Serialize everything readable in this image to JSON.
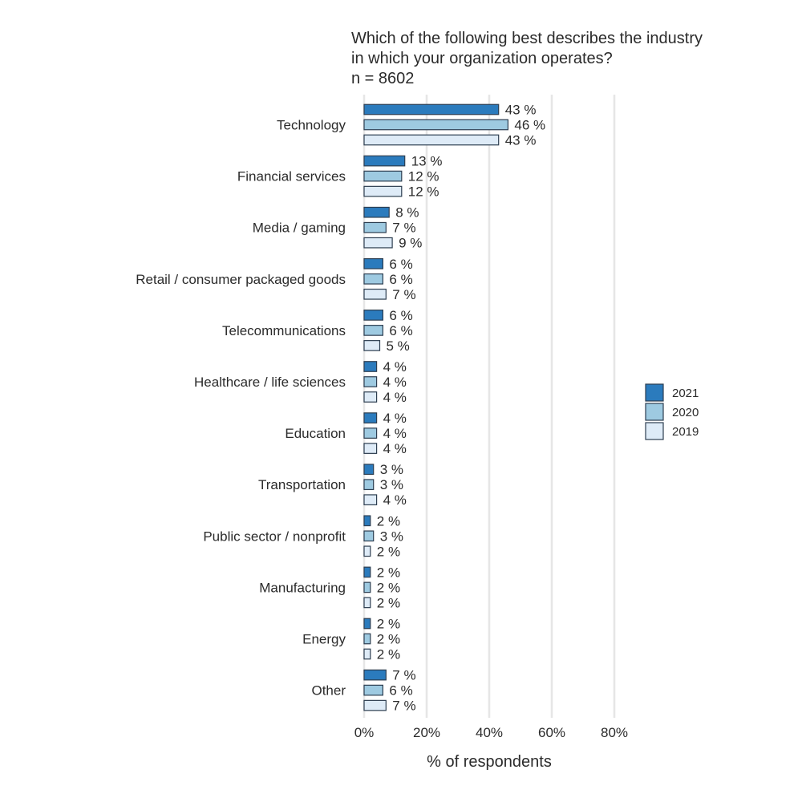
{
  "title": {
    "line1": "Which of the following best describes the industry",
    "line2": "in which your organization operates?",
    "line3": "n = 8602"
  },
  "chart_data": {
    "type": "bar",
    "orientation": "horizontal",
    "categories": [
      "Technology",
      "Financial services",
      "Media / gaming",
      "Retail / consumer packaged goods",
      "Telecommunications",
      "Healthcare / life sciences",
      "Education",
      "Transportation",
      "Public sector / nonprofit",
      "Manufacturing",
      "Energy",
      "Other"
    ],
    "series": [
      {
        "name": "2021",
        "color": "#2b7bbd",
        "values": [
          43,
          13,
          8,
          6,
          6,
          4,
          4,
          3,
          2,
          2,
          2,
          7
        ]
      },
      {
        "name": "2020",
        "color": "#9ecae1",
        "values": [
          46,
          12,
          7,
          6,
          6,
          4,
          4,
          3,
          3,
          2,
          2,
          6
        ]
      },
      {
        "name": "2019",
        "color": "#deebf7",
        "values": [
          43,
          12,
          9,
          7,
          5,
          4,
          4,
          4,
          2,
          2,
          2,
          7
        ]
      }
    ],
    "value_suffix": " %",
    "xlabel": "% of respondents",
    "xlim": [
      0,
      80
    ],
    "xticks": [
      0,
      20,
      40,
      60,
      80
    ],
    "xtick_labels": [
      "0%",
      "20%",
      "40%",
      "60%",
      "80%"
    ],
    "grid": true,
    "legend_position": "right",
    "bar_outline_color": "#2d3e50",
    "grid_color": "#e6e6e6"
  }
}
